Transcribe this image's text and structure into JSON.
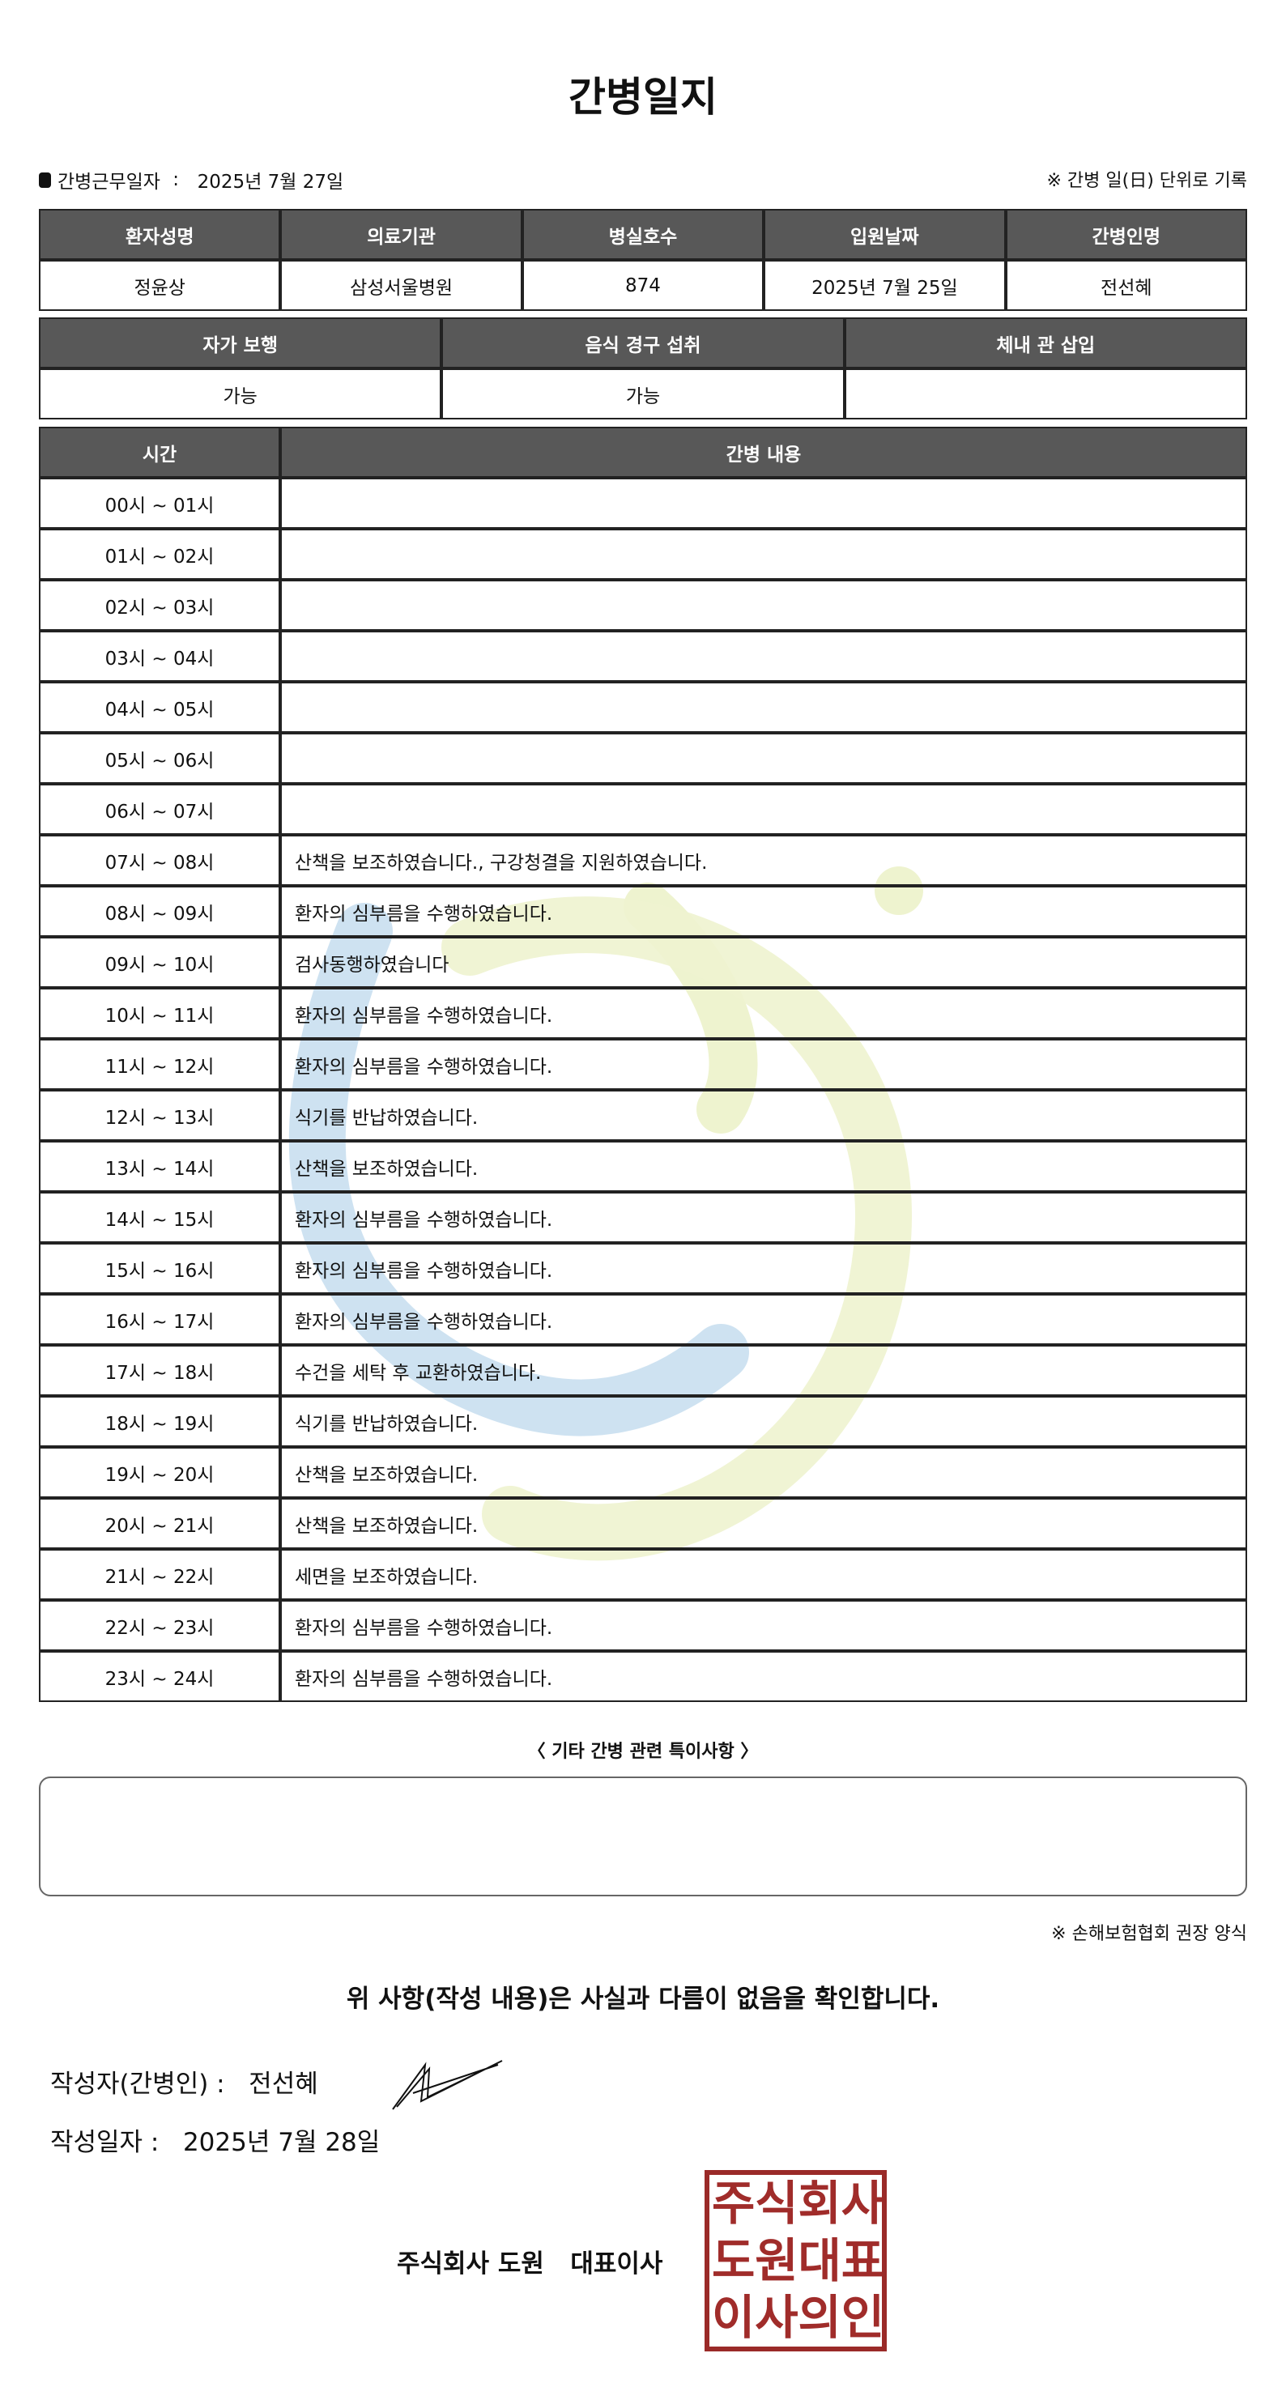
{
  "title": "간병일지",
  "work_date_label": "간병근무일자",
  "work_date": "2025년 7월 27일",
  "daily_note": "※ 간병 일(日) 단위로 기록",
  "info": {
    "headers": [
      "환자성명",
      "의료기관",
      "병실호수",
      "입원날짜",
      "간병인명"
    ],
    "values": [
      "정윤상",
      "삼성서울병원",
      "874",
      "2025년 7월 25일",
      "전선혜"
    ]
  },
  "status": {
    "headers": [
      "자가 보행",
      "음식 경구 섭취",
      "체내 관 삽입"
    ],
    "values": [
      "가능",
      "가능",
      ""
    ]
  },
  "log": {
    "headers": [
      "시간",
      "간병 내용"
    ],
    "rows": [
      {
        "time": "00시 ~ 01시",
        "content": ""
      },
      {
        "time": "01시 ~ 02시",
        "content": ""
      },
      {
        "time": "02시 ~ 03시",
        "content": ""
      },
      {
        "time": "03시 ~ 04시",
        "content": ""
      },
      {
        "time": "04시 ~ 05시",
        "content": ""
      },
      {
        "time": "05시 ~ 06시",
        "content": ""
      },
      {
        "time": "06시 ~ 07시",
        "content": ""
      },
      {
        "time": "07시 ~ 08시",
        "content": "산책을 보조하였습니다., 구강청결을 지원하였습니다."
      },
      {
        "time": "08시 ~ 09시",
        "content": "환자의 심부름을 수행하였습니다."
      },
      {
        "time": "09시 ~ 10시",
        "content": "검사동행하였습니다"
      },
      {
        "time": "10시 ~ 11시",
        "content": "환자의 심부름을 수행하였습니다."
      },
      {
        "time": "11시 ~ 12시",
        "content": "환자의 심부름을 수행하였습니다."
      },
      {
        "time": "12시 ~ 13시",
        "content": "식기를 반납하였습니다."
      },
      {
        "time": "13시 ~ 14시",
        "content": "산책을 보조하였습니다."
      },
      {
        "time": "14시 ~ 15시",
        "content": "환자의 심부름을 수행하였습니다."
      },
      {
        "time": "15시 ~ 16시",
        "content": "환자의 심부름을 수행하였습니다."
      },
      {
        "time": "16시 ~ 17시",
        "content": "환자의 심부름을 수행하였습니다."
      },
      {
        "time": "17시 ~ 18시",
        "content": "수건을 세탁 후 교환하였습니다."
      },
      {
        "time": "18시 ~ 19시",
        "content": "식기를 반납하였습니다."
      },
      {
        "time": "19시 ~ 20시",
        "content": "산책을 보조하였습니다."
      },
      {
        "time": "20시 ~ 21시",
        "content": "산책을 보조하였습니다."
      },
      {
        "time": "21시 ~ 22시",
        "content": "세면을 보조하였습니다."
      },
      {
        "time": "22시 ~ 23시",
        "content": "환자의 심부름을 수행하였습니다."
      },
      {
        "time": "23시 ~ 24시",
        "content": "환자의 심부름을 수행하였습니다."
      }
    ]
  },
  "special_heading": "〈 기타 간병 관련 특이사항 〉",
  "special_content": "",
  "association_note": "※ 손해보험협회 권장 양식",
  "confirm_text": "위 사항(작성 내용)은 사실과 다름이 없음을 확인합니다.",
  "writer_label": "작성자(간병인) :",
  "writer_name": "전선혜",
  "written_date_label": "작성일자 :",
  "written_date": "2025년 7월 28일",
  "company": "주식회사 도원",
  "ceo_label": "대표이사",
  "seal_text": "주식회사도원대표이사의인",
  "seal_color": "#9a2a28",
  "watermark_colors": [
    "#c9dff0",
    "#eef3cf"
  ]
}
